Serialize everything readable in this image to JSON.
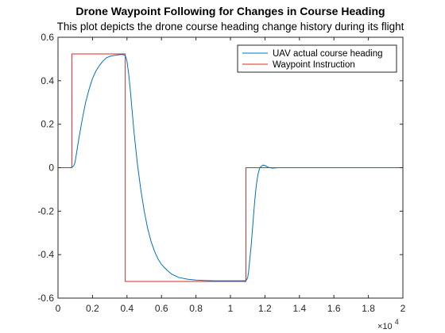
{
  "chart_data": {
    "type": "line",
    "title": "Drone Waypoint Following for Changes in Course Heading",
    "subtitle": "This plot depicts the drone course heading change history during its flight",
    "xlabel": "",
    "ylabel": "",
    "x_exponent_base": "×10",
    "x_exponent_power": "4",
    "xlim": [
      0,
      20000
    ],
    "ylim": [
      -0.6,
      0.6
    ],
    "xticks": [
      0,
      2000,
      4000,
      6000,
      8000,
      10000,
      12000,
      14000,
      16000,
      18000,
      20000
    ],
    "xtick_labels": [
      "0",
      "0.2",
      "0.4",
      "0.6",
      "0.8",
      "1",
      "1.2",
      "1.4",
      "1.6",
      "1.8",
      "2"
    ],
    "yticks": [
      0.6,
      0.4,
      0.2,
      0,
      -0.2,
      -0.4,
      -0.6
    ],
    "ytick_labels": [
      "0.6",
      "0.4",
      "0.2",
      "0",
      "-0.2",
      "-0.4",
      "-0.6"
    ],
    "grid": false,
    "legend_position": "top-right",
    "series": [
      {
        "name": "UAV actual course heading",
        "color": "#0072bd",
        "x": [
          0,
          700,
          800,
          850,
          900,
          950,
          1000,
          1100,
          1200,
          1400,
          1600,
          1800,
          2000,
          2200,
          2400,
          2600,
          2800,
          3000,
          3200,
          3400,
          3600,
          3800,
          3900,
          3950,
          4000,
          4050,
          4100,
          4200,
          4300,
          4400,
          4600,
          4800,
          5000,
          5200,
          5400,
          5600,
          5800,
          6000,
          6300,
          6600,
          7000,
          7500,
          8000,
          8500,
          9000,
          9500,
          10000,
          10500,
          10850,
          10950,
          11000,
          11050,
          11100,
          11200,
          11300,
          11400,
          11500,
          11600,
          11700,
          11800,
          11900,
          12000,
          12100,
          12200,
          12300,
          12400,
          12500,
          12600,
          12800,
          13000,
          14000,
          16000,
          18000,
          20000
        ],
        "y": [
          0,
          0,
          0.002,
          0.004,
          0.008,
          0.015,
          0.03,
          0.08,
          0.13,
          0.22,
          0.3,
          0.36,
          0.41,
          0.445,
          0.47,
          0.49,
          0.505,
          0.512,
          0.516,
          0.518,
          0.52,
          0.52,
          0.515,
          0.505,
          0.49,
          0.46,
          0.43,
          0.35,
          0.26,
          0.17,
          0.02,
          -0.1,
          -0.2,
          -0.28,
          -0.34,
          -0.385,
          -0.42,
          -0.445,
          -0.47,
          -0.49,
          -0.505,
          -0.513,
          -0.517,
          -0.519,
          -0.52,
          -0.52,
          -0.52,
          -0.52,
          -0.52,
          -0.515,
          -0.505,
          -0.48,
          -0.44,
          -0.36,
          -0.26,
          -0.16,
          -0.08,
          -0.03,
          0.0,
          0.007,
          0.012,
          0.01,
          0.006,
          0.002,
          0.0,
          -0.002,
          -0.002,
          -0.001,
          0.0,
          0.0,
          0.0,
          0.0,
          0.0,
          0.0
        ]
      },
      {
        "name": "Waypoint Instruction",
        "color": "#d42a2a",
        "x": [
          0,
          800,
          800,
          3900,
          3900,
          10900,
          10900,
          20000
        ],
        "y": [
          0,
          0,
          0.5236,
          0.5236,
          -0.5236,
          -0.5236,
          0,
          0
        ]
      }
    ]
  }
}
